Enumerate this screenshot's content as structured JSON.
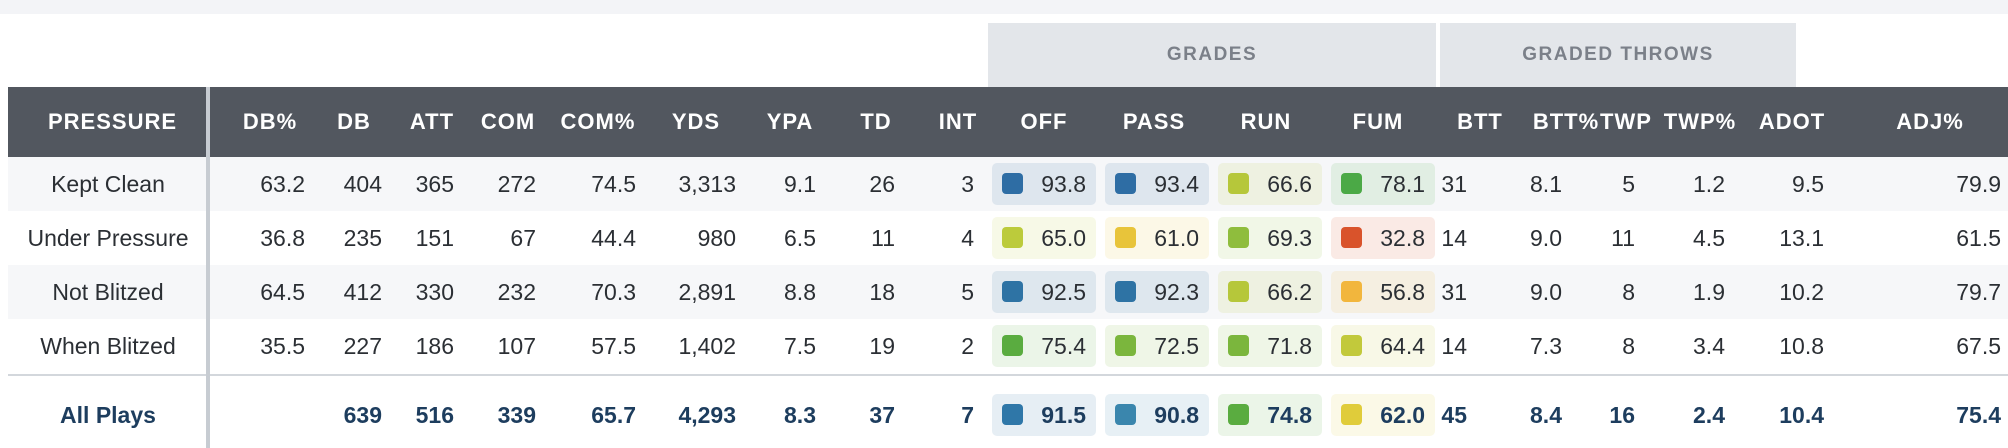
{
  "table": {
    "group_headers": [
      {
        "label": "GRADES"
      },
      {
        "label": "GRADED THROWS"
      }
    ],
    "columns": [
      "PRESSURE",
      "DB%",
      "DB",
      "ATT",
      "COM",
      "COM%",
      "YDS",
      "YPA",
      "TD",
      "INT",
      "OFF",
      "PASS",
      "RUN",
      "FUM",
      "BTT",
      "BTT%",
      "TWP",
      "TWP%",
      "ADOT",
      "ADJ%"
    ],
    "rows": [
      {
        "label": "Kept Clean",
        "db_pct": "63.2",
        "db": "404",
        "att": "365",
        "com": "272",
        "com_pct": "74.5",
        "yds": "3,313",
        "ypa": "9.1",
        "td": "26",
        "int": "3",
        "grades": [
          {
            "value": "93.8",
            "color": "#2e6da4"
          },
          {
            "value": "93.4",
            "color": "#2e6da4"
          },
          {
            "value": "66.6",
            "color": "#b6c73a"
          },
          {
            "value": "78.1",
            "color": "#4ba946"
          }
        ],
        "btt": "31",
        "btt_pct": "8.1",
        "twp": "5",
        "twp_pct": "1.2",
        "adot": "9.5",
        "adj_pct": "79.9"
      },
      {
        "label": "Under Pressure",
        "db_pct": "36.8",
        "db": "235",
        "att": "151",
        "com": "67",
        "com_pct": "44.4",
        "yds": "980",
        "ypa": "6.5",
        "td": "11",
        "int": "4",
        "grades": [
          {
            "value": "65.0",
            "color": "#bccb3b"
          },
          {
            "value": "61.0",
            "color": "#e8c43a"
          },
          {
            "value": "69.3",
            "color": "#8fbd3d"
          },
          {
            "value": "32.8",
            "color": "#d9532b"
          }
        ],
        "btt": "14",
        "btt_pct": "9.0",
        "twp": "11",
        "twp_pct": "4.5",
        "adot": "13.1",
        "adj_pct": "61.5"
      },
      {
        "label": "Not Blitzed",
        "db_pct": "64.5",
        "db": "412",
        "att": "330",
        "com": "232",
        "com_pct": "70.3",
        "yds": "2,891",
        "ypa": "8.8",
        "td": "18",
        "int": "5",
        "grades": [
          {
            "value": "92.5",
            "color": "#2e73a4"
          },
          {
            "value": "92.3",
            "color": "#2e73a4"
          },
          {
            "value": "66.2",
            "color": "#b6c73a"
          },
          {
            "value": "56.8",
            "color": "#f2b63d"
          }
        ],
        "btt": "31",
        "btt_pct": "9.0",
        "twp": "8",
        "twp_pct": "1.9",
        "adot": "10.2",
        "adj_pct": "79.7"
      },
      {
        "label": "When Blitzed",
        "db_pct": "35.5",
        "db": "227",
        "att": "186",
        "com": "107",
        "com_pct": "57.5",
        "yds": "1,402",
        "ypa": "7.5",
        "td": "19",
        "int": "2",
        "grades": [
          {
            "value": "75.4",
            "color": "#5aac40"
          },
          {
            "value": "72.5",
            "color": "#7bb63d"
          },
          {
            "value": "71.8",
            "color": "#7bb63d"
          },
          {
            "value": "64.4",
            "color": "#c2c93b"
          }
        ],
        "btt": "14",
        "btt_pct": "7.3",
        "twp": "8",
        "twp_pct": "3.4",
        "adot": "10.8",
        "adj_pct": "67.5"
      }
    ],
    "total": {
      "label": "All Plays",
      "db_pct": "",
      "db": "639",
      "att": "516",
      "com": "339",
      "com_pct": "65.7",
      "yds": "4,293",
      "ypa": "8.3",
      "td": "37",
      "int": "7",
      "grades": [
        {
          "value": "91.5",
          "color": "#2f77a8"
        },
        {
          "value": "90.8",
          "color": "#3a86ad"
        },
        {
          "value": "74.8",
          "color": "#5aac40"
        },
        {
          "value": "62.0",
          "color": "#e0cc3a"
        }
      ],
      "btt": "45",
      "btt_pct": "8.4",
      "twp": "16",
      "twp_pct": "2.4",
      "adot": "10.4",
      "adj_pct": "75.4"
    }
  }
}
